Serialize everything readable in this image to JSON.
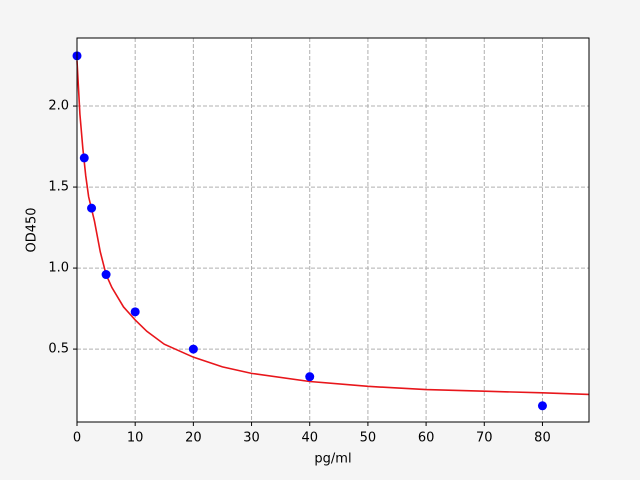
{
  "chart_data": {
    "type": "scatter",
    "xlabel": "pg/ml",
    "ylabel": "OD450",
    "xlim": [
      0,
      88
    ],
    "ylim": [
      0.05,
      2.42
    ],
    "xticks": [
      0,
      10,
      20,
      30,
      40,
      50,
      60,
      70,
      80
    ],
    "yticks": [
      0.5,
      {
        "value": 1.0,
        "label": "1.0"
      },
      1.5,
      {
        "value": 2.0,
        "label": "2.0"
      }
    ],
    "grid": true,
    "series": [
      {
        "mode": "line",
        "color": "#e8161b",
        "x": [
          0,
          0.5,
          1,
          1.5,
          2,
          3,
          4,
          5,
          6,
          8,
          10,
          12,
          15,
          20,
          25,
          30,
          40,
          50,
          60,
          70,
          80,
          88
        ],
        "values": [
          2.28,
          1.95,
          1.74,
          1.57,
          1.44,
          1.29,
          1.1,
          0.96,
          0.88,
          0.76,
          0.68,
          0.61,
          0.53,
          0.45,
          0.39,
          0.35,
          0.3,
          0.27,
          0.25,
          0.24,
          0.23,
          0.22
        ]
      },
      {
        "mode": "points",
        "color": "#0000ff",
        "x": [
          0,
          1.25,
          2.5,
          5,
          10,
          20,
          40,
          80
        ],
        "values": [
          2.31,
          1.68,
          1.37,
          0.96,
          0.73,
          0.5,
          0.33,
          0.15
        ]
      }
    ]
  }
}
